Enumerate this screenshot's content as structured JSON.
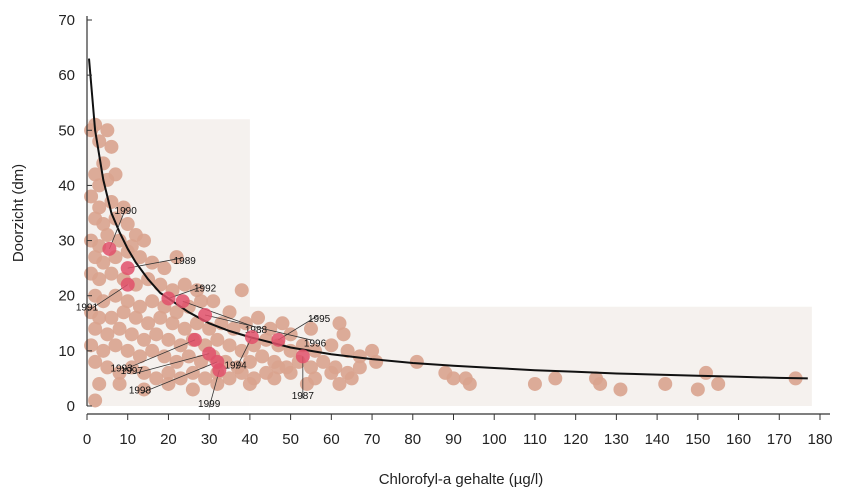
{
  "chart_data": {
    "type": "scatter",
    "xlabel": "Chlorofyl-a gehalte (µg/l)",
    "ylabel": "Doorzicht (dm)",
    "xlim": [
      0,
      180
    ],
    "ylim": [
      0,
      70
    ],
    "x_ticks": [
      "0",
      "10",
      "20",
      "30",
      "40",
      "50",
      "60",
      "70",
      "80",
      "90",
      "100",
      "110",
      "120",
      "130",
      "140",
      "150",
      "160",
      "170",
      "180"
    ],
    "y_ticks": [
      "0",
      "10",
      "20",
      "30",
      "40",
      "50",
      "60",
      "70"
    ],
    "colors": {
      "points": "#d9a38e",
      "highlight": "#e0506a",
      "curve": "#111111",
      "background_band": "#f5f1ee"
    },
    "curve": {
      "x": [
        0.5,
        2,
        4,
        6,
        8,
        10,
        12,
        15,
        18,
        21,
        25,
        30,
        35,
        40,
        50,
        60,
        70,
        80,
        90,
        100,
        110,
        120,
        130,
        140,
        150,
        160,
        170,
        177
      ],
      "y": [
        63,
        50,
        41,
        35,
        31.5,
        28.5,
        26,
        23,
        20.5,
        19,
        17,
        15,
        13.6,
        12.5,
        10.6,
        9.4,
        8.5,
        7.8,
        7.3,
        6.9,
        6.5,
        6.2,
        5.9,
        5.7,
        5.5,
        5.3,
        5.1,
        5.0
      ]
    },
    "scatter_points": [
      [
        1,
        50
      ],
      [
        2,
        51
      ],
      [
        3,
        48
      ],
      [
        5,
        50
      ],
      [
        6,
        47
      ],
      [
        4,
        44
      ],
      [
        2,
        42
      ],
      [
        3,
        40
      ],
      [
        5,
        41
      ],
      [
        7,
        42
      ],
      [
        1,
        38
      ],
      [
        3,
        36
      ],
      [
        6,
        37
      ],
      [
        9,
        36
      ],
      [
        2,
        34
      ],
      [
        4,
        33
      ],
      [
        7,
        34
      ],
      [
        10,
        33
      ],
      [
        12,
        31
      ],
      [
        1,
        30
      ],
      [
        3,
        29
      ],
      [
        5,
        31
      ],
      [
        8,
        30
      ],
      [
        11,
        29
      ],
      [
        14,
        30
      ],
      [
        2,
        27
      ],
      [
        4,
        26
      ],
      [
        7,
        27
      ],
      [
        10,
        28
      ],
      [
        13,
        27
      ],
      [
        16,
        26
      ],
      [
        19,
        25
      ],
      [
        22,
        27
      ],
      [
        1,
        24
      ],
      [
        3,
        23
      ],
      [
        6,
        24
      ],
      [
        9,
        23
      ],
      [
        12,
        22
      ],
      [
        15,
        23
      ],
      [
        18,
        22
      ],
      [
        21,
        21
      ],
      [
        24,
        22
      ],
      [
        27,
        21
      ],
      [
        38,
        21
      ],
      [
        2,
        20
      ],
      [
        4,
        19
      ],
      [
        7,
        20
      ],
      [
        10,
        19
      ],
      [
        13,
        18
      ],
      [
        16,
        19
      ],
      [
        19,
        18
      ],
      [
        22,
        17
      ],
      [
        25,
        18
      ],
      [
        28,
        19
      ],
      [
        31,
        19
      ],
      [
        35,
        17
      ],
      [
        1,
        17
      ],
      [
        3,
        16
      ],
      [
        6,
        16
      ],
      [
        9,
        17
      ],
      [
        12,
        16
      ],
      [
        15,
        15
      ],
      [
        18,
        16
      ],
      [
        21,
        15
      ],
      [
        24,
        14
      ],
      [
        27,
        15
      ],
      [
        30,
        14
      ],
      [
        33,
        15
      ],
      [
        36,
        14
      ],
      [
        39,
        15
      ],
      [
        42,
        16
      ],
      [
        45,
        14
      ],
      [
        48,
        15
      ],
      [
        50,
        13
      ],
      [
        55,
        14
      ],
      [
        62,
        15
      ],
      [
        63,
        13
      ],
      [
        2,
        14
      ],
      [
        5,
        13
      ],
      [
        8,
        14
      ],
      [
        11,
        13
      ],
      [
        14,
        12
      ],
      [
        17,
        13
      ],
      [
        20,
        12
      ],
      [
        23,
        11
      ],
      [
        26,
        12
      ],
      [
        29,
        11
      ],
      [
        32,
        12
      ],
      [
        35,
        11
      ],
      [
        38,
        10
      ],
      [
        41,
        11
      ],
      [
        44,
        12
      ],
      [
        47,
        11
      ],
      [
        50,
        10
      ],
      [
        53,
        11
      ],
      [
        56,
        10
      ],
      [
        60,
        11
      ],
      [
        64,
        10
      ],
      [
        67,
        9
      ],
      [
        70,
        10
      ],
      [
        1,
        11
      ],
      [
        4,
        10
      ],
      [
        7,
        11
      ],
      [
        10,
        10
      ],
      [
        13,
        9
      ],
      [
        16,
        10
      ],
      [
        19,
        9
      ],
      [
        22,
        8
      ],
      [
        25,
        9
      ],
      [
        28,
        8
      ],
      [
        31,
        9
      ],
      [
        34,
        8
      ],
      [
        37,
        7
      ],
      [
        40,
        8
      ],
      [
        43,
        9
      ],
      [
        46,
        8
      ],
      [
        49,
        7
      ],
      [
        52,
        8
      ],
      [
        55,
        7
      ],
      [
        58,
        8
      ],
      [
        61,
        7
      ],
      [
        64,
        6
      ],
      [
        67,
        7
      ],
      [
        71,
        8
      ],
      [
        2,
        8
      ],
      [
        5,
        7
      ],
      [
        8,
        6
      ],
      [
        11,
        7
      ],
      [
        14,
        6
      ],
      [
        17,
        5
      ],
      [
        20,
        6
      ],
      [
        23,
        5
      ],
      [
        26,
        6
      ],
      [
        29,
        5
      ],
      [
        32,
        6
      ],
      [
        35,
        5
      ],
      [
        38,
        6
      ],
      [
        41,
        5
      ],
      [
        44,
        6
      ],
      [
        47,
        7
      ],
      [
        50,
        6
      ],
      [
        56,
        5
      ],
      [
        60,
        6
      ],
      [
        65,
        5
      ],
      [
        3,
        4
      ],
      [
        8,
        4
      ],
      [
        14,
        3
      ],
      [
        20,
        4
      ],
      [
        26,
        3
      ],
      [
        32,
        4
      ],
      [
        40,
        4
      ],
      [
        46,
        5
      ],
      [
        54,
        4
      ],
      [
        62,
        4
      ],
      [
        2,
        1
      ],
      [
        81,
        8
      ],
      [
        88,
        6
      ],
      [
        90,
        5
      ],
      [
        93,
        5
      ],
      [
        94,
        4
      ],
      [
        110,
        4
      ],
      [
        115,
        5
      ],
      [
        125,
        5
      ],
      [
        126,
        4
      ],
      [
        131,
        3
      ],
      [
        142,
        4
      ],
      [
        150,
        3
      ],
      [
        152,
        6
      ],
      [
        155,
        4
      ],
      [
        174,
        5
      ]
    ],
    "highlighted": [
      {
        "year": "1990",
        "x": 5.5,
        "y": 28.5
      },
      {
        "year": "1989",
        "x": 10,
        "y": 25
      },
      {
        "year": "1991",
        "x": 10,
        "y": 22
      },
      {
        "year": "1992",
        "x": 20,
        "y": 19.5
      },
      {
        "year": "1988",
        "x": 23.5,
        "y": 19
      },
      {
        "year": "1996",
        "x": 29,
        "y": 16.5
      },
      {
        "year": "1993",
        "x": 26.5,
        "y": 12
      },
      {
        "year": "1997",
        "x": 30,
        "y": 9.5
      },
      {
        "year": "1994",
        "x": 40.5,
        "y": 12.5
      },
      {
        "year": "1995",
        "x": 47,
        "y": 12
      },
      {
        "year": "1998",
        "x": 32,
        "y": 8
      },
      {
        "year": "1999",
        "x": 32.5,
        "y": 6.5
      },
      {
        "year": "1987",
        "x": 53,
        "y": 9
      }
    ]
  }
}
